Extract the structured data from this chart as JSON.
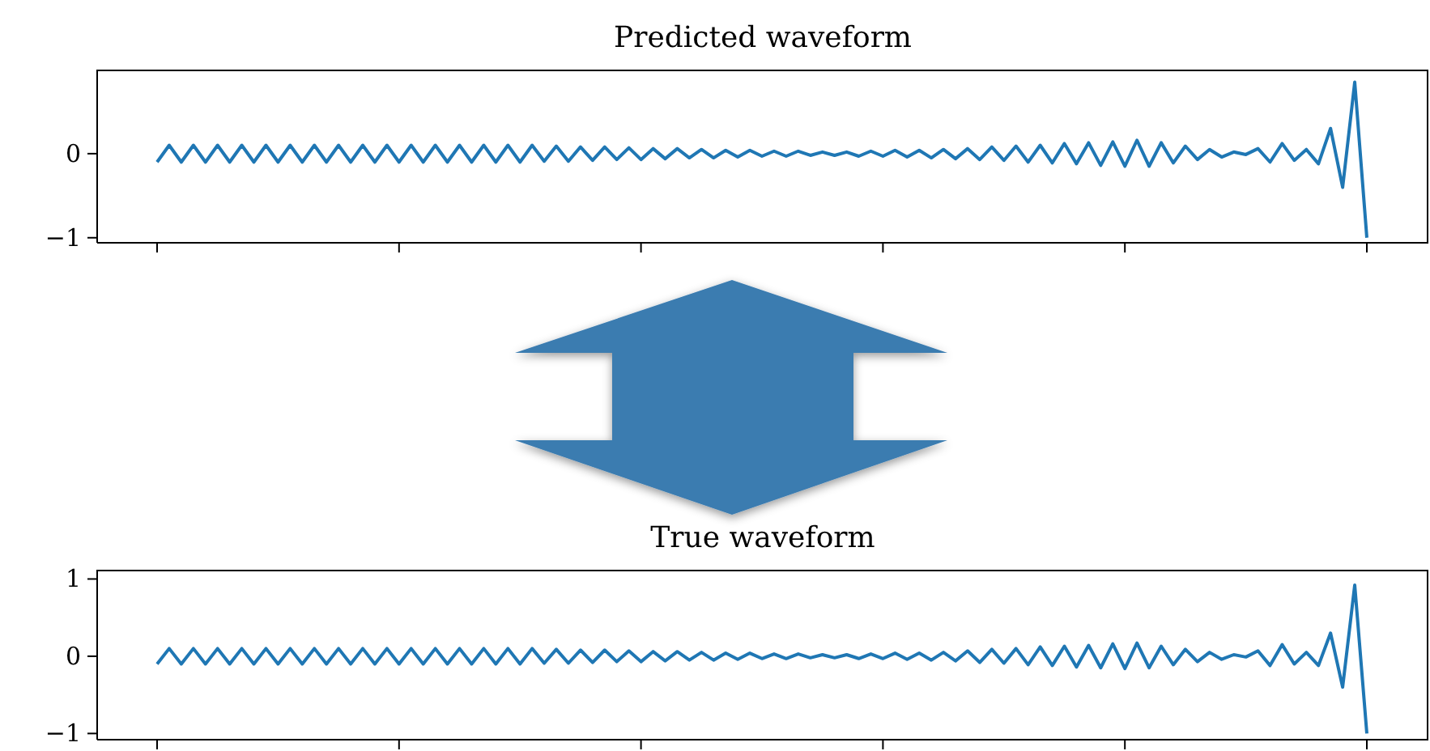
{
  "chart_data": [
    {
      "type": "line",
      "title": "Predicted waveform",
      "categories": [
        null,
        null,
        null,
        null,
        null,
        null,
        null,
        null,
        null,
        null,
        null,
        null,
        null,
        null,
        null,
        null,
        null,
        null,
        null,
        null,
        null,
        null,
        null,
        null,
        null,
        null,
        null,
        null,
        null,
        null,
        null,
        null,
        null,
        null,
        null,
        null,
        null,
        null,
        null,
        null,
        null,
        null,
        null,
        null,
        null,
        null,
        null,
        null,
        null,
        null,
        null,
        null,
        null,
        null,
        null,
        null,
        null,
        null,
        null,
        null,
        null,
        null,
        null,
        null,
        null,
        null,
        null,
        null,
        null,
        null,
        null,
        null,
        null,
        null,
        null,
        null,
        null,
        null,
        null,
        null,
        null,
        null,
        null,
        null,
        null,
        null,
        null,
        null,
        null,
        null,
        null,
        null,
        null,
        null,
        null,
        null,
        null,
        null,
        null,
        null,
        null
      ],
      "series": [
        {
          "color": "#1f77b4",
          "values": [
            -0.1,
            0.1,
            -0.1,
            0.1,
            -0.1,
            0.1,
            -0.1,
            0.1,
            -0.1,
            0.1,
            -0.1,
            0.1,
            -0.1,
            0.1,
            -0.1,
            0.1,
            -0.1,
            0.1,
            -0.1,
            0.1,
            -0.1,
            0.1,
            -0.1,
            0.1,
            -0.1,
            0.1,
            -0.1,
            0.1,
            -0.1,
            0.1,
            -0.1,
            0.1,
            -0.09,
            0.09,
            -0.09,
            0.08,
            -0.08,
            0.08,
            -0.07,
            0.07,
            -0.07,
            0.06,
            -0.06,
            0.06,
            -0.05,
            0.05,
            -0.05,
            0.04,
            -0.04,
            0.04,
            -0.03,
            0.03,
            -0.03,
            0.03,
            -0.02,
            0.02,
            -0.02,
            0.02,
            -0.03,
            0.03,
            -0.03,
            0.04,
            -0.04,
            0.04,
            -0.05,
            0.05,
            -0.06,
            0.06,
            -0.07,
            0.08,
            -0.08,
            0.09,
            -0.1,
            0.1,
            -0.11,
            0.12,
            -0.12,
            0.13,
            -0.14,
            0.14,
            -0.15,
            0.16,
            -0.15,
            0.13,
            -0.11,
            0.09,
            -0.07,
            0.05,
            -0.04,
            0.02,
            -0.01,
            0.06,
            -0.1,
            0.12,
            -0.08,
            0.05,
            -0.12,
            0.3,
            -0.4,
            0.85,
            -1.0
          ]
        }
      ],
      "ylim": [
        -1.06,
        1.0
      ],
      "yticks": [
        {
          "value": 0,
          "label": "0"
        },
        {
          "value": -1,
          "label": "−1"
        }
      ],
      "tick_labels": "y"
    },
    {
      "type": "line",
      "title": "True waveform",
      "categories": [
        null,
        null,
        null,
        null,
        null,
        null,
        null,
        null,
        null,
        null,
        null,
        null,
        null,
        null,
        null,
        null,
        null,
        null,
        null,
        null,
        null,
        null,
        null,
        null,
        null,
        null,
        null,
        null,
        null,
        null,
        null,
        null,
        null,
        null,
        null,
        null,
        null,
        null,
        null,
        null,
        null,
        null,
        null,
        null,
        null,
        null,
        null,
        null,
        null,
        null,
        null,
        null,
        null,
        null,
        null,
        null,
        null,
        null,
        null,
        null,
        null,
        null,
        null,
        null,
        null,
        null,
        null,
        null,
        null,
        null,
        null,
        null,
        null,
        null,
        null,
        null,
        null,
        null,
        null,
        null,
        null,
        null,
        null,
        null,
        null,
        null,
        null,
        null,
        null,
        null,
        null,
        null,
        null,
        null,
        null,
        null,
        null,
        null,
        null,
        null,
        null
      ],
      "series": [
        {
          "color": "#1f77b4",
          "values": [
            -0.1,
            0.1,
            -0.1,
            0.1,
            -0.1,
            0.1,
            -0.1,
            0.1,
            -0.1,
            0.1,
            -0.1,
            0.1,
            -0.1,
            0.1,
            -0.1,
            0.1,
            -0.1,
            0.1,
            -0.1,
            0.1,
            -0.1,
            0.1,
            -0.1,
            0.1,
            -0.1,
            0.1,
            -0.1,
            0.1,
            -0.1,
            0.1,
            -0.1,
            0.1,
            -0.09,
            0.09,
            -0.09,
            0.08,
            -0.08,
            0.08,
            -0.07,
            0.07,
            -0.07,
            0.06,
            -0.06,
            0.06,
            -0.05,
            0.05,
            -0.05,
            0.04,
            -0.04,
            0.04,
            -0.03,
            0.03,
            -0.03,
            0.03,
            -0.02,
            0.02,
            -0.02,
            0.02,
            -0.03,
            0.03,
            -0.03,
            0.04,
            -0.04,
            0.04,
            -0.05,
            0.05,
            -0.06,
            0.07,
            -0.08,
            0.09,
            -0.09,
            0.1,
            -0.11,
            0.12,
            -0.12,
            0.13,
            -0.14,
            0.14,
            -0.15,
            0.16,
            -0.16,
            0.17,
            -0.15,
            0.13,
            -0.11,
            0.09,
            -0.07,
            0.05,
            -0.04,
            0.02,
            -0.01,
            0.07,
            -0.12,
            0.15,
            -0.1,
            0.05,
            -0.12,
            0.3,
            -0.4,
            0.92,
            -1.0
          ]
        }
      ],
      "ylim": [
        -1.08,
        1.12
      ],
      "yticks": [
        {
          "value": 1,
          "label": "1"
        },
        {
          "value": 0,
          "label": "0"
        },
        {
          "value": -1,
          "label": "−1"
        }
      ],
      "tick_labels": "y"
    }
  ]
}
